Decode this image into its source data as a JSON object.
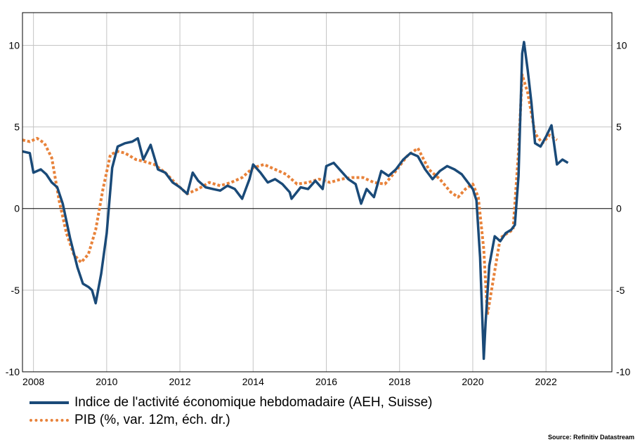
{
  "chart_data": {
    "type": "line",
    "x_range": [
      2007.7,
      2023.8
    ],
    "ylim_left": [
      -10,
      12
    ],
    "ylim_right": [
      -10,
      12
    ],
    "x_ticks": [
      {
        "value": 2008,
        "label": "2008"
      },
      {
        "value": 2010,
        "label": "2010"
      },
      {
        "value": 2012,
        "label": "2012"
      },
      {
        "value": 2014,
        "label": "2014"
      },
      {
        "value": 2016,
        "label": "2016"
      },
      {
        "value": 2018,
        "label": "2018"
      },
      {
        "value": 2020,
        "label": "2020"
      },
      {
        "value": 2022,
        "label": "2022"
      }
    ],
    "y_ticks_left": [
      {
        "value": 10,
        "label": "10"
      },
      {
        "value": 5,
        "label": "5"
      },
      {
        "value": 0,
        "label": "0"
      },
      {
        "value": -5,
        "label": "-5"
      },
      {
        "value": -10,
        "label": "-10"
      }
    ],
    "y_ticks_right": [
      {
        "value": 10,
        "label": "10"
      },
      {
        "value": 5,
        "label": "5"
      },
      {
        "value": 0,
        "label": "0"
      },
      {
        "value": -5,
        "label": "-5"
      },
      {
        "value": -10,
        "label": "-10"
      }
    ],
    "grid": true,
    "legend_position": "bottom-left",
    "series": [
      {
        "name": "Indice de l'activité économique hebdomadaire (AEH, Suisse)",
        "color": "#1a4a78",
        "style": "solid",
        "axis": "left",
        "x": [
          2007.7,
          2007.9,
          2008.0,
          2008.2,
          2008.35,
          2008.5,
          2008.65,
          2008.8,
          2009.0,
          2009.2,
          2009.35,
          2009.5,
          2009.6,
          2009.7,
          2009.85,
          2010.0,
          2010.15,
          2010.3,
          2010.5,
          2010.7,
          2010.85,
          2011.0,
          2011.2,
          2011.4,
          2011.6,
          2011.8,
          2012.0,
          2012.2,
          2012.35,
          2012.5,
          2012.7,
          2012.9,
          2013.1,
          2013.3,
          2013.5,
          2013.7,
          2013.9,
          2014.0,
          2014.2,
          2014.4,
          2014.6,
          2014.8,
          2015.0,
          2015.05,
          2015.3,
          2015.5,
          2015.7,
          2015.9,
          2016.0,
          2016.2,
          2016.4,
          2016.6,
          2016.8,
          2016.95,
          2017.1,
          2017.3,
          2017.5,
          2017.7,
          2017.9,
          2018.1,
          2018.3,
          2018.5,
          2018.7,
          2018.9,
          2019.1,
          2019.3,
          2019.5,
          2019.7,
          2019.9,
          2020.0,
          2020.1,
          2020.2,
          2020.3,
          2020.35,
          2020.45,
          2020.6,
          2020.75,
          2020.9,
          2021.05,
          2021.15,
          2021.25,
          2021.35,
          2021.4,
          2021.5,
          2021.6,
          2021.7,
          2021.85,
          2022.0,
          2022.15,
          2022.3,
          2022.45,
          2022.6
        ],
        "y": [
          3.5,
          3.4,
          2.2,
          2.4,
          2.1,
          1.6,
          1.3,
          0.3,
          -1.8,
          -3.6,
          -4.6,
          -4.8,
          -5.0,
          -5.8,
          -4.0,
          -1.5,
          2.5,
          3.8,
          4.0,
          4.1,
          4.3,
          3.0,
          3.9,
          2.4,
          2.2,
          1.6,
          1.3,
          0.9,
          2.2,
          1.7,
          1.3,
          1.2,
          1.1,
          1.4,
          1.2,
          0.6,
          1.8,
          2.7,
          2.2,
          1.6,
          1.8,
          1.5,
          1.0,
          0.6,
          1.3,
          1.2,
          1.7,
          1.2,
          2.6,
          2.8,
          2.3,
          1.8,
          1.5,
          0.3,
          1.2,
          0.7,
          2.3,
          2.0,
          2.4,
          3.0,
          3.4,
          3.2,
          2.4,
          1.8,
          2.3,
          2.6,
          2.4,
          2.1,
          1.5,
          1.2,
          0.5,
          -3.0,
          -9.2,
          -7.0,
          -3.5,
          -1.7,
          -2.0,
          -1.5,
          -1.3,
          -1.0,
          2.0,
          9.5,
          10.2,
          8.5,
          6.5,
          4.0,
          3.8,
          4.4,
          5.1,
          2.7,
          3.0,
          2.8
        ]
      },
      {
        "name": "PIB (%, var. 12m, éch. dr.)",
        "color": "#e8823a",
        "style": "dotted",
        "axis": "right",
        "x": [
          2007.7,
          2007.9,
          2008.1,
          2008.3,
          2008.5,
          2008.7,
          2008.9,
          2009.1,
          2009.3,
          2009.5,
          2009.7,
          2009.9,
          2010.1,
          2010.3,
          2010.5,
          2010.8,
          2011.0,
          2011.3,
          2011.6,
          2011.9,
          2012.2,
          2012.5,
          2012.8,
          2013.1,
          2013.4,
          2013.7,
          2014.0,
          2014.3,
          2014.6,
          2014.9,
          2015.2,
          2015.5,
          2015.8,
          2016.1,
          2016.4,
          2016.7,
          2017.0,
          2017.3,
          2017.6,
          2017.9,
          2018.2,
          2018.5,
          2018.8,
          2019.1,
          2019.4,
          2019.6,
          2019.8,
          2020.0,
          2020.15,
          2020.3,
          2020.4,
          2020.55,
          2020.75,
          2020.95,
          2021.1,
          2021.25,
          2021.35,
          2021.5,
          2021.7,
          2021.9,
          2022.1,
          2022.3
        ],
        "y": [
          4.2,
          4.1,
          4.3,
          4.0,
          3.1,
          0.5,
          -1.5,
          -2.8,
          -3.3,
          -2.8,
          -1.3,
          1.2,
          3.3,
          3.5,
          3.4,
          3.0,
          2.9,
          2.7,
          2.2,
          1.5,
          0.9,
          1.2,
          1.6,
          1.4,
          1.6,
          1.9,
          2.5,
          2.7,
          2.4,
          2.1,
          1.5,
          1.6,
          1.8,
          1.6,
          1.8,
          1.9,
          1.9,
          1.6,
          1.5,
          2.3,
          3.2,
          3.7,
          2.4,
          1.8,
          1.0,
          0.7,
          1.2,
          1.5,
          0.7,
          -2.5,
          -6.5,
          -4.5,
          -1.8,
          -1.5,
          -1.3,
          3.5,
          8.2,
          7.1,
          4.6,
          4.0,
          4.5,
          4.2
        ]
      }
    ]
  },
  "source_note": "Source: Refinitiv Datastream"
}
